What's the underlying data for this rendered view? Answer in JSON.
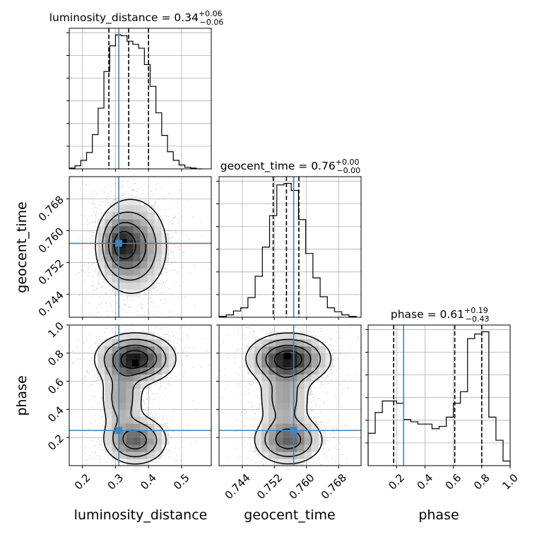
{
  "chart_data": {
    "type": "corner",
    "parameters": [
      {
        "name": "luminosity_distance",
        "title": "luminosity_distance = 0.34",
        "title_plus": "+0.06",
        "title_minus": "−0.06",
        "xlim": [
          0.16,
          0.59
        ],
        "ticks": [
          0.2,
          0.3,
          0.4,
          0.5
        ],
        "tick_labels": [
          "0.2",
          "0.3",
          "0.4",
          "0.5"
        ],
        "quantiles": [
          0.28,
          0.34,
          0.4
        ],
        "injection": 0.31,
        "hist": {
          "bin_edges": [
            0.16,
            0.1775,
            0.195,
            0.2125,
            0.23,
            0.2475,
            0.265,
            0.2825,
            0.3,
            0.3175,
            0.335,
            0.3525,
            0.37,
            0.3875,
            0.405,
            0.4225,
            0.44,
            0.4575,
            0.475,
            0.4925,
            0.51,
            0.5275,
            0.545,
            0.5625
          ],
          "heights": [
            1,
            4,
            11,
            21,
            44,
            78,
            125,
            158,
            172,
            171,
            164,
            160,
            155,
            134,
            106,
            72,
            43,
            22,
            11,
            5,
            2,
            1,
            0
          ]
        }
      },
      {
        "name": "geocent_time",
        "title": "geocent_time = 0.76",
        "title_plus": "+0.00",
        "title_minus": "−0.00",
        "xlim": [
          0.7382,
          0.7736
        ],
        "ticks": [
          0.744,
          0.752,
          0.76,
          0.768
        ],
        "tick_labels": [
          "0.744",
          "0.752",
          "0.760",
          "0.768"
        ],
        "quantiles": [
          0.7517,
          0.755,
          0.7581
        ],
        "injection": 0.7568,
        "hist": {
          "bin_edges": [
            0.7382,
            0.74,
            0.7418,
            0.7436,
            0.7454,
            0.7472,
            0.749,
            0.7508,
            0.7526,
            0.7544,
            0.7562,
            0.758,
            0.7598,
            0.7616,
            0.7634,
            0.7652,
            0.767,
            0.7688,
            0.7706,
            0.7724
          ],
          "heights": [
            1,
            3,
            8,
            12,
            25,
            52,
            89,
            129,
            168,
            170,
            161,
            124,
            81,
            50,
            26,
            12,
            7,
            3,
            1
          ]
        }
      },
      {
        "name": "phase",
        "title": "phase = 0.61",
        "title_plus": "+0.19",
        "title_minus": "−0.43",
        "xlim": [
          0.0,
          1.0
        ],
        "ticks": [
          0.2,
          0.4,
          0.6,
          0.8,
          1.0
        ],
        "tick_labels": [
          "0.2",
          "0.4",
          "0.6",
          "0.8",
          "1.0"
        ],
        "quantiles": [
          0.18,
          0.61,
          0.8
        ],
        "injection": 0.25,
        "hist": {
          "bin_edges": [
            0.0,
            0.05,
            0.1,
            0.15,
            0.2,
            0.25,
            0.3,
            0.35,
            0.4,
            0.45,
            0.5,
            0.55,
            0.6,
            0.65,
            0.7,
            0.75,
            0.8,
            0.85,
            0.9,
            0.95,
            1.0
          ],
          "heights": [
            0.14,
            0.23,
            0.28,
            0.28,
            0.27,
            0.2,
            0.19,
            0.18,
            0.18,
            0.16,
            0.17,
            0.21,
            0.27,
            0.32,
            0.55,
            0.57,
            0.58,
            0.21,
            0.11,
            0.02
          ]
        }
      }
    ],
    "joint_panels": [
      {
        "x": "luminosity_distance",
        "y": "geocent_time",
        "yticks": [
          0.744,
          0.752,
          0.76,
          0.768
        ],
        "ytick_labels": [
          "0.744",
          "0.752",
          "0.760",
          "0.768"
        ],
        "ylim": [
          0.7382,
          0.7736
        ],
        "modes": [
          [
            0.35,
            0.756,
            0.055,
            0.0062,
            1.0
          ],
          [
            0.31,
            0.7567,
            0.03,
            0.004,
            0.55
          ]
        ],
        "peak_markers": [
          [
            0.315,
            0.7565
          ],
          [
            0.325,
            0.7571
          ]
        ]
      },
      {
        "x": "luminosity_distance",
        "y": "phase",
        "yticks": [
          0.2,
          0.4,
          0.6,
          0.8,
          1.0
        ],
        "ytick_labels": [
          "0.2",
          "0.4",
          "0.6",
          "0.8",
          "1.0"
        ],
        "ylim": [
          0.0,
          1.0
        ],
        "modes": [
          [
            0.36,
            0.76,
            0.06,
            0.09,
            1.0
          ],
          [
            0.36,
            0.18,
            0.05,
            0.09,
            0.7
          ],
          [
            0.32,
            0.48,
            0.035,
            0.13,
            0.45
          ]
        ],
        "peak_markers": [
          [
            0.36,
            0.73
          ]
        ]
      },
      {
        "x": "geocent_time",
        "y": "phase",
        "ylim": [
          0.0,
          1.0
        ],
        "modes": [
          [
            0.7555,
            0.76,
            0.0052,
            0.09,
            1.0
          ],
          [
            0.7555,
            0.18,
            0.0045,
            0.09,
            0.7
          ],
          [
            0.7545,
            0.48,
            0.0035,
            0.13,
            0.45
          ]
        ],
        "peak_markers": [
          [
            0.7553,
            0.78
          ]
        ]
      }
    ],
    "colors": {
      "injection": "#4682b4",
      "contour": "#000000",
      "points": "#9a9a9a",
      "grid": "#b0b0b0"
    }
  }
}
